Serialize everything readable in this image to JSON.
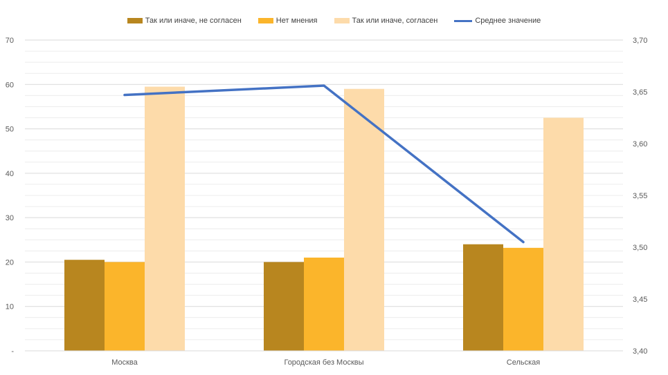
{
  "chart_data": {
    "type": "bar",
    "categories": [
      "Москва",
      "Городская без Москвы",
      "Сельская"
    ],
    "series": [
      {
        "name": "Так или иначе, не согласен",
        "values": [
          20.5,
          20.0,
          24.0
        ],
        "color": "#B8861F"
      },
      {
        "name": "Нет мнения",
        "values": [
          20.0,
          21.0,
          23.2
        ],
        "color": "#FBB52B"
      },
      {
        "name": "Так или иначе, согласен",
        "values": [
          59.5,
          59.0,
          52.5
        ],
        "color": "#FDDBAA"
      }
    ],
    "line_series": {
      "name": "Среднее значение",
      "values": [
        3.647,
        3.656,
        3.505
      ],
      "color": "#4472C4",
      "axis": "right"
    },
    "ylim": [
      0,
      70
    ],
    "y_ticks": [
      "-",
      "10",
      "20",
      "30",
      "40",
      "50",
      "60",
      "70"
    ],
    "y2lim": [
      3.4,
      3.7
    ],
    "y2_ticks": [
      "3,40",
      "3,45",
      "3,50",
      "3,55",
      "3,60",
      "3,65",
      "3,70"
    ],
    "grid": true,
    "legend_position": "top"
  }
}
